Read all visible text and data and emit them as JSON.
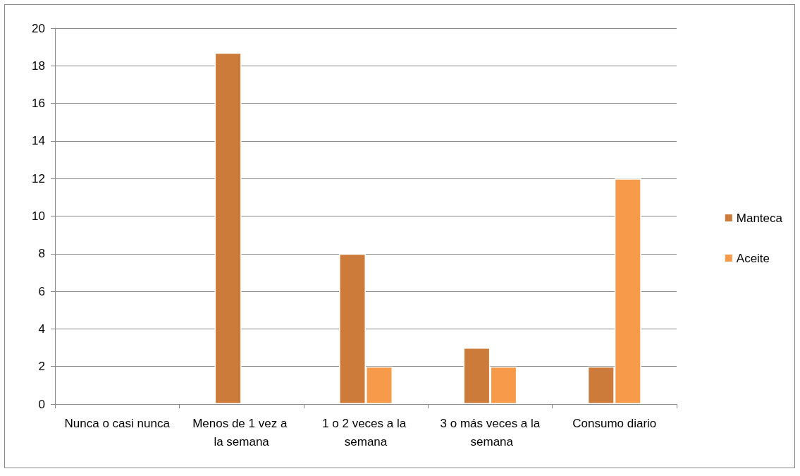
{
  "chart_data": {
    "type": "bar",
    "categories": [
      "Nunca o casi nunca",
      "Menos de 1 vez a la semana",
      "1 o 2 veces a la semana",
      "3 o más veces a la semana",
      "Consumo diario"
    ],
    "series": [
      {
        "name": "Manteca",
        "color": "#cc7b3a",
        "values": [
          0,
          18.7,
          8,
          3,
          2
        ]
      },
      {
        "name": "Aceite",
        "color": "#f79b4a",
        "values": [
          0,
          0,
          2,
          2,
          12
        ]
      }
    ],
    "ylim": [
      0,
      20
    ],
    "yticks": [
      0,
      2,
      4,
      6,
      8,
      10,
      12,
      14,
      16,
      18,
      20
    ],
    "grid": "y",
    "legend": "right"
  }
}
